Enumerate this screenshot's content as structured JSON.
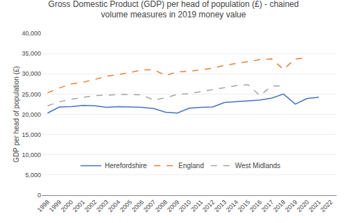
{
  "chart_data": {
    "type": "line",
    "title": "Gross Domestic Product (GDP) per head of population (£) - chained\nvolume measures in 2019 money value",
    "y_label": "GDP per head of population (£)",
    "x": [
      1998,
      1999,
      2000,
      2001,
      2002,
      2003,
      2004,
      2005,
      2006,
      2007,
      2008,
      2009,
      2010,
      2011,
      2012,
      2013,
      2014,
      2015,
      2016,
      2017,
      2018,
      2019,
      2020,
      2021,
      2022
    ],
    "series": [
      {
        "name": "Herefordshire",
        "color": "#4472C4",
        "line_style": "solid",
        "values": [
          20300,
          21800,
          21900,
          22200,
          22100,
          21700,
          21900,
          21800,
          21700,
          21400,
          20500,
          20300,
          21500,
          21700,
          21800,
          22900,
          23100,
          23300,
          23500,
          24000,
          25000,
          22500,
          23900,
          24200,
          null
        ]
      },
      {
        "name": "England",
        "color": "#ED7D31",
        "line_style": "dashed",
        "values": [
          25300,
          26500,
          27500,
          27900,
          28600,
          29400,
          29800,
          30300,
          31000,
          31000,
          29600,
          30500,
          30600,
          31000,
          31400,
          32100,
          32600,
          33000,
          33500,
          33700,
          31100,
          33700,
          33900,
          null,
          null
        ]
      },
      {
        "name": "West Midlands",
        "color": "#A5A5A5",
        "line_style": "dashed",
        "values": [
          22100,
          23100,
          23700,
          24200,
          24600,
          24700,
          24900,
          24900,
          24800,
          23500,
          24100,
          24900,
          25100,
          25600,
          26100,
          26600,
          27100,
          27300,
          24600,
          27000,
          27000,
          null,
          null,
          null,
          null
        ]
      }
    ],
    "xlim": [
      1997.5,
      2022.5
    ],
    "xticks": [
      1998,
      1999,
      2000,
      2001,
      2002,
      2003,
      2004,
      2005,
      2006,
      2007,
      2008,
      2009,
      2010,
      2011,
      2012,
      2013,
      2014,
      2015,
      2016,
      2017,
      2018,
      2019,
      2020,
      2021,
      2022
    ],
    "ylim": [
      0,
      40000
    ],
    "yticks": [
      0,
      {
        "value": 5000,
        "label": "5,000"
      },
      {
        "value": 10000,
        "label": "10,000"
      },
      {
        "value": 15000,
        "label": "15,000"
      },
      {
        "value": 20000,
        "label": "20,000"
      },
      {
        "value": 25000,
        "label": "25,000"
      },
      {
        "value": 30000,
        "label": "30,000"
      },
      {
        "value": 35000,
        "label": "35,000"
      },
      {
        "value": 40000,
        "label": "40,000"
      }
    ],
    "grid": true,
    "legend": "lower left"
  }
}
